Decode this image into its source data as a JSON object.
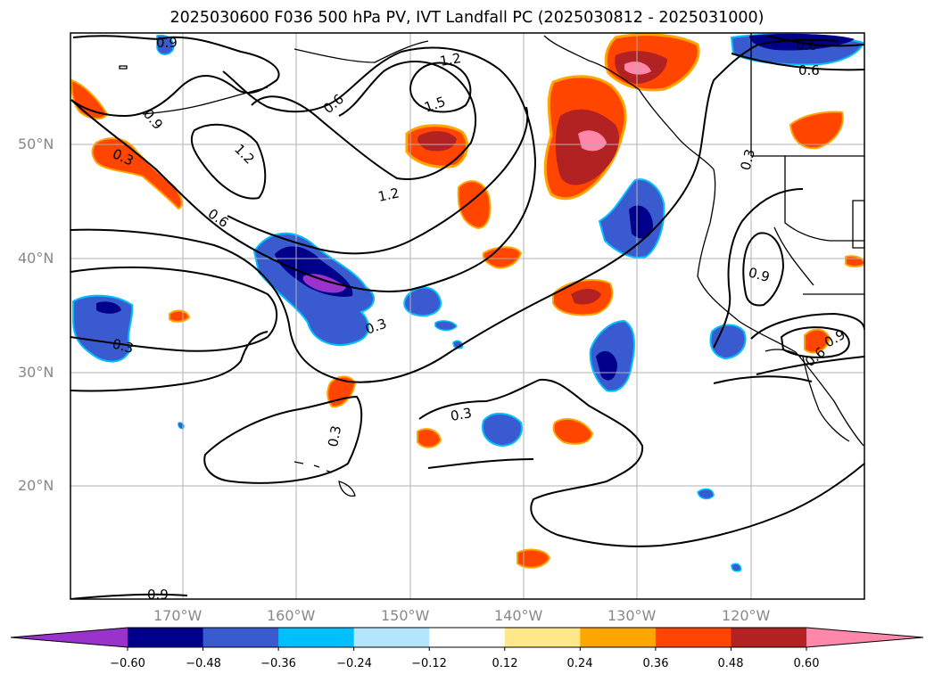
{
  "title": "2025030600 F036 500 hPa PV, IVT Landfall PC (2025030812 - 2025031000)",
  "lat_labels": [
    "50°N",
    "40°N",
    "30°N",
    "20°N"
  ],
  "lon_labels": [
    "170°W",
    "160°W",
    "150°W",
    "140°W",
    "130°W",
    "120°W"
  ],
  "contour_labels": [
    "0.9",
    "0.6",
    "1.2",
    "1.5",
    "0.3",
    "0.6",
    "1.2",
    "0.9",
    "0.6",
    "0.3",
    "0.3",
    "0.3",
    "0.3",
    "0.9",
    "0.6",
    "0.9",
    "0.3",
    "0.6",
    "0.9",
    "1.2"
  ],
  "colorbar": {
    "ticks": [
      "−0.60",
      "−0.48",
      "−0.36",
      "−0.24",
      "−0.12",
      "0.12",
      "0.24",
      "0.36",
      "0.48",
      "0.60"
    ],
    "colors": [
      "#9933cc",
      "#00008b",
      "#3a5bd0",
      "#00bfff",
      "#b3e5fc",
      "#ffffff",
      "#ffe88a",
      "#ffa500",
      "#ff4500",
      "#b22222",
      "#ff88aa"
    ]
  }
}
